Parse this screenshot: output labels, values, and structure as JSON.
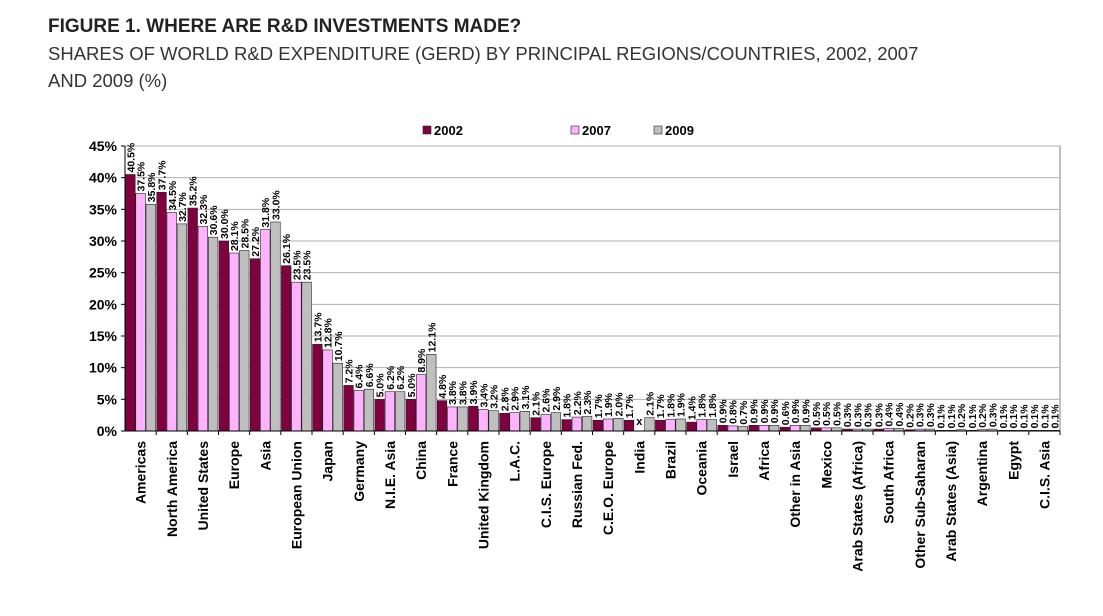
{
  "title": "FIGURE 1. WHERE ARE R&D INVESTMENTS MADE?",
  "subtitle": "SHARES OF WORLD R&D EXPENDITURE (GERD) BY PRINCIPAL REGIONS/COUNTRIES, 2002, 2007 AND 2009 (%)",
  "colors": {
    "2002": "#800040",
    "2007": "#ffb3ff",
    "2009": "#bfbfbf",
    "grid": "#b0b0b0",
    "plot_bg": "#ffffff"
  },
  "chart_data": {
    "type": "bar",
    "title": "FIGURE 1. WHERE ARE R&D INVESTMENTS MADE?",
    "xlabel": "",
    "ylabel": "",
    "ylim": [
      0,
      45
    ],
    "yticks": [
      "0%",
      "5%",
      "10%",
      "15%",
      "20%",
      "25%",
      "30%",
      "35%",
      "40%",
      "45%"
    ],
    "grid": true,
    "legend": "top-center",
    "categories": [
      "Americas",
      "North America",
      "United States",
      "Europe",
      "Asia",
      "European Union",
      "Japan",
      "Germany",
      "N.I.E. Asia",
      "China",
      "France",
      "United Kingdom",
      "L.A.C.",
      "C.I.S. Europe",
      "Russian Fed.",
      "C.E.O. Europe",
      "India",
      "Brazil",
      "Oceania",
      "Israel",
      "Africa",
      "Other in Asia",
      "Mexico",
      "Arab States (Africa)",
      "South Africa",
      "Other Sub-Saharan",
      "Arab States (Asia)",
      "Argentina",
      "Egypt",
      "C.I.S. Asia"
    ],
    "series": [
      {
        "name": "2002",
        "values": [
          40.5,
          37.7,
          35.2,
          30.0,
          27.2,
          26.1,
          13.7,
          7.2,
          5.0,
          5.0,
          4.8,
          3.9,
          2.8,
          2.1,
          1.8,
          1.7,
          1.7,
          1.7,
          1.4,
          0.9,
          0.9,
          0.6,
          0.5,
          0.3,
          0.3,
          0.2,
          0.1,
          0.1,
          0.1,
          0.1
        ]
      },
      {
        "name": "2007",
        "values": [
          37.5,
          34.5,
          32.3,
          28.1,
          31.8,
          23.5,
          12.8,
          6.4,
          6.2,
          8.9,
          3.8,
          3.4,
          2.9,
          2.6,
          2.2,
          1.9,
          null,
          1.8,
          1.8,
          0.8,
          0.9,
          0.9,
          0.5,
          0.3,
          0.4,
          0.3,
          0.1,
          0.2,
          0.1,
          0.1
        ]
      },
      {
        "name": "2009",
        "values": [
          35.8,
          32.7,
          30.6,
          28.5,
          33.0,
          23.5,
          10.7,
          6.6,
          6.2,
          12.1,
          3.8,
          3.2,
          3.1,
          2.9,
          2.3,
          2.0,
          2.1,
          1.9,
          1.8,
          0.7,
          0.9,
          0.9,
          0.5,
          0.3,
          0.4,
          0.3,
          0.2,
          0.3,
          0.1,
          0.1
        ]
      }
    ],
    "value_labels": [
      [
        "40.5%",
        "37.7%",
        "35.2%",
        "30.0%",
        "27.2%",
        "26.1%",
        "13.7%",
        "7.2%",
        "5.0%",
        "5.0%",
        "4.8%",
        "3.9%",
        "2.8%",
        "2.1%",
        "1.8%",
        "1.7%",
        "1.7%",
        "1.7%",
        "1.4%",
        "0.9%",
        "0.9%",
        "0.6%",
        "0.5%",
        "0.3%",
        "0.3%",
        "0.2%",
        "0.1%",
        "0.1%",
        "0.1%",
        "0.1%"
      ],
      [
        "37.5%",
        "34.5%",
        "32.3%",
        "28.1%",
        "31.8%",
        "23.5%",
        "12.8%",
        "6.4%",
        "6.2%",
        "8.9%",
        "3.8%",
        "3.4%",
        "2.9%",
        "2.6%",
        "2.2%",
        "1.9%",
        "x",
        "1.8%",
        "1.8%",
        "0.8%",
        "0.9%",
        "0.9%",
        "0.5%",
        "0.3%",
        "0.4%",
        "0.3%",
        "0.1%",
        "0.2%",
        "0.1%",
        "0.1%"
      ],
      [
        "35.8%",
        "32.7%",
        "30.6%",
        "28.5%",
        "33.0%",
        "23.5%",
        "10.7%",
        "6.6%",
        "6.2%",
        "12.1%",
        "3.8%",
        "3.2%",
        "3.1%",
        "2.9%",
        "2.3%",
        "2.0%",
        "2.1%",
        "1.9%",
        "1.8%",
        "0.7%",
        "0.9%",
        "0.9%",
        "0.5%",
        "0.3%",
        "0.4%",
        "0.3%",
        "0.2%",
        "0.3%",
        "0.1%",
        "0.1%"
      ]
    ]
  }
}
